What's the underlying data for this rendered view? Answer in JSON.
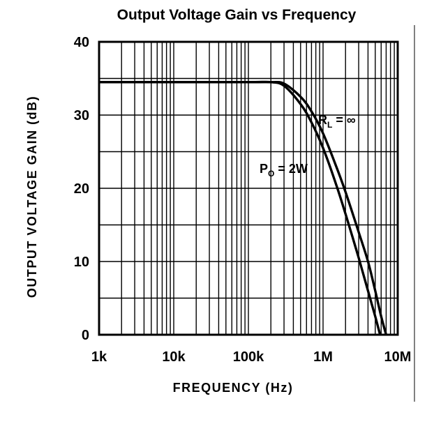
{
  "chart_data": {
    "type": "line",
    "title": "Output Voltage Gain vs Frequency",
    "xlabel": "FREQUENCY (Hz)",
    "ylabel": "OUTPUT VOLTAGE GAIN (dB)",
    "x_scale": "log",
    "xlim": [
      1000,
      10000000
    ],
    "ylim": [
      0,
      40
    ],
    "x_ticks": [
      1000,
      10000,
      100000,
      1000000,
      10000000
    ],
    "x_tick_labels": [
      "1k",
      "10k",
      "100k",
      "1M",
      "10M"
    ],
    "y_ticks": [
      0,
      10,
      20,
      30,
      40
    ],
    "y_tick_labels": [
      "0",
      "10",
      "20",
      "30",
      "40"
    ],
    "grid": true,
    "series": [
      {
        "name": "RL = ∞",
        "label_main": "R",
        "label_sub": "L",
        "label_rest": " = ∞",
        "x": [
          1000,
          10000,
          100000,
          200000,
          300000,
          500000,
          700000,
          1000000,
          1500000,
          2000000,
          3000000,
          4000000,
          5000000,
          6000000,
          7000000
        ],
        "y": [
          34.5,
          34.5,
          34.5,
          34.5,
          34.3,
          32.5,
          30.5,
          27.5,
          23,
          19.5,
          14,
          10,
          6,
          2.5,
          0
        ]
      },
      {
        "name": "PO = 2W",
        "label_main": "P",
        "label_sub": "O",
        "label_rest": " = 2W",
        "x": [
          1000,
          10000,
          100000,
          200000,
          300000,
          500000,
          700000,
          1000000,
          1500000,
          2000000,
          3000000,
          4000000,
          5000000,
          5800000
        ],
        "y": [
          34.5,
          34.5,
          34.5,
          34.5,
          34,
          31.5,
          29,
          25.5,
          20.5,
          16.5,
          10.5,
          6,
          2.5,
          0
        ]
      }
    ]
  }
}
